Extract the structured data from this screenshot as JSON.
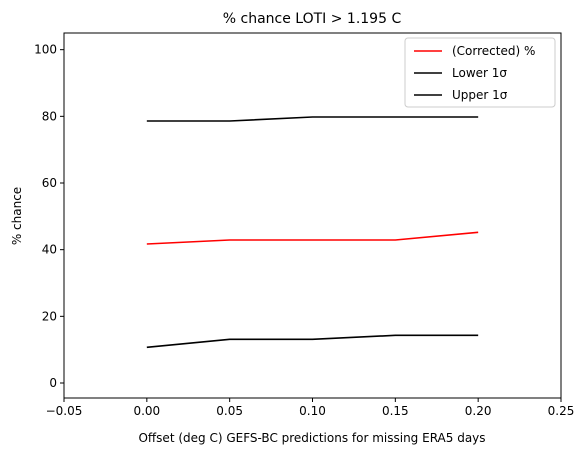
{
  "chart_data": {
    "type": "line",
    "title": "% chance LOTI > 1.195 C",
    "xlabel": "Offset (deg C) GEFS-BC predictions for missing ERA5 days",
    "ylabel": "% chance",
    "xlim": [
      -0.05,
      0.25
    ],
    "ylim": [
      -4.5,
      105
    ],
    "xticks": [
      -0.05,
      0.0,
      0.05,
      0.1,
      0.15,
      0.2,
      0.25
    ],
    "xtick_labels": [
      "−0.05",
      "0.00",
      "0.05",
      "0.10",
      "0.15",
      "0.20",
      "0.25"
    ],
    "yticks": [
      0,
      20,
      40,
      60,
      80,
      100
    ],
    "ytick_labels": [
      "0",
      "20",
      "40",
      "60",
      "80",
      "100"
    ],
    "grid": false,
    "legend_position": "top-right",
    "x": [
      0.0,
      0.05,
      0.1,
      0.15,
      0.2
    ],
    "series": [
      {
        "name": "(Corrected) %",
        "color": "#ff0000",
        "values": [
          41.7,
          42.9,
          42.9,
          42.9,
          45.2
        ]
      },
      {
        "name": "Lower 1σ",
        "color": "#000000",
        "values": [
          78.6,
          78.6,
          79.8,
          79.8,
          79.8
        ]
      },
      {
        "name": "Upper 1σ",
        "color": "#000000",
        "values": [
          10.7,
          13.1,
          13.1,
          14.3,
          14.3
        ]
      }
    ]
  }
}
